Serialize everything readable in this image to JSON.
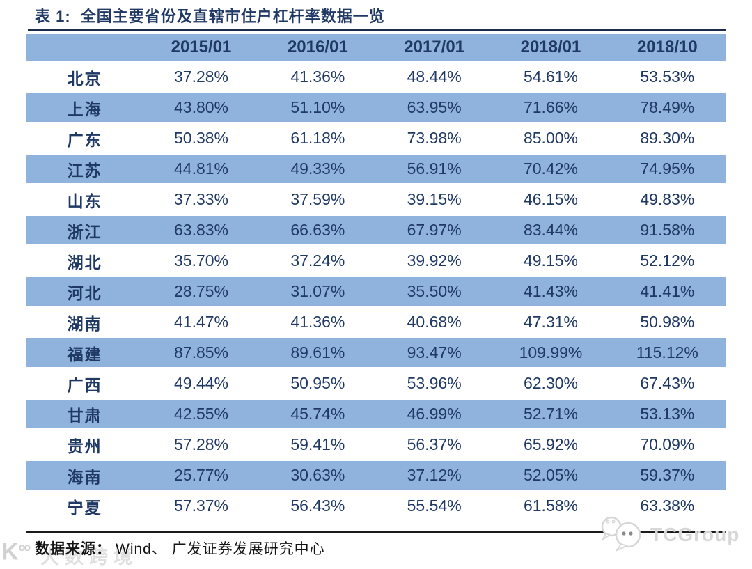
{
  "title": {
    "prefix": "表 1:",
    "text": "全国主要省份及直辖市住户杠杆率数据一览"
  },
  "footer": {
    "source_label": "数据来源：",
    "source_text": "Wind、 广发证券发展研究中心"
  },
  "watermarks": {
    "left_logo_glyph": "K",
    "left_logo_sup": "oo",
    "left_text": "大数跨境",
    "right_text": "TCGroup"
  },
  "colors": {
    "band_blue": "#8FB3DC",
    "text_navy": "#1F3864",
    "rule_dark": "#1c2b4a"
  },
  "chart_data": {
    "type": "table",
    "title": "表 1: 全国主要省份及直辖市住户杠杆率数据一览",
    "columns": [
      "2015/01",
      "2016/01",
      "2017/01",
      "2018/01",
      "2018/10"
    ],
    "unit": "%",
    "rows": [
      {
        "region": "北京",
        "values_pct": [
          37.28,
          41.36,
          48.44,
          54.61,
          53.53
        ]
      },
      {
        "region": "上海",
        "values_pct": [
          43.8,
          51.1,
          63.95,
          71.66,
          78.49
        ]
      },
      {
        "region": "广东",
        "values_pct": [
          50.38,
          61.18,
          73.98,
          85.0,
          89.3
        ]
      },
      {
        "region": "江苏",
        "values_pct": [
          44.81,
          49.33,
          56.91,
          70.42,
          74.95
        ]
      },
      {
        "region": "山东",
        "values_pct": [
          37.33,
          37.59,
          39.15,
          46.15,
          49.83
        ]
      },
      {
        "region": "浙江",
        "values_pct": [
          63.83,
          66.63,
          67.97,
          83.44,
          91.58
        ]
      },
      {
        "region": "湖北",
        "values_pct": [
          35.7,
          37.24,
          39.92,
          49.15,
          52.12
        ]
      },
      {
        "region": "河北",
        "values_pct": [
          28.75,
          31.07,
          35.5,
          41.43,
          41.41
        ]
      },
      {
        "region": "湖南",
        "values_pct": [
          41.47,
          41.36,
          40.68,
          47.31,
          50.98
        ]
      },
      {
        "region": "福建",
        "values_pct": [
          87.85,
          89.61,
          93.47,
          109.99,
          115.12
        ]
      },
      {
        "region": "广西",
        "values_pct": [
          49.44,
          50.95,
          53.96,
          62.3,
          67.43
        ]
      },
      {
        "region": "甘肃",
        "values_pct": [
          42.55,
          45.74,
          46.99,
          52.71,
          53.13
        ]
      },
      {
        "region": "贵州",
        "values_pct": [
          57.28,
          59.41,
          56.37,
          65.92,
          70.09
        ]
      },
      {
        "region": "海南",
        "values_pct": [
          25.77,
          30.63,
          37.12,
          52.05,
          59.37
        ]
      },
      {
        "region": "宁夏",
        "values_pct": [
          57.37,
          56.43,
          55.54,
          61.58,
          63.38
        ]
      }
    ]
  }
}
